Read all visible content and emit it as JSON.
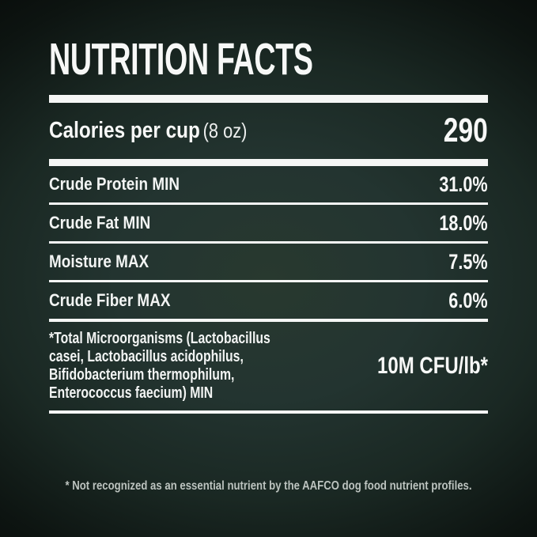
{
  "label": {
    "title": "NUTRITION FACTS",
    "calories": {
      "name": "Calories per cup",
      "serving": "(8 oz)",
      "value": "290"
    },
    "nutrients": [
      {
        "name": "Crude Protein MIN",
        "value": "31.0%"
      },
      {
        "name": "Crude Fat MIN",
        "value": "18.0%"
      },
      {
        "name": "Moisture MAX",
        "value": "7.5%"
      },
      {
        "name": "Crude Fiber MAX",
        "value": "6.0%"
      },
      {
        "name": "*Total Microorganisms (Lactobacillus casei, Lactobacillus acidophilus, Bifidobacterium thermophilum, Enterococcus faecium) MIN",
        "value": "10M CFU/lb*"
      }
    ],
    "footnote": "* Not recognized as an essential nutrient by the AAFCO dog food nutrient profiles.",
    "colors": {
      "background_center": "#28392f",
      "background_edge": "#050706",
      "text": "#ffffff",
      "divider": "#f5f6f5",
      "footnote_text": "#bcc3bf"
    }
  }
}
